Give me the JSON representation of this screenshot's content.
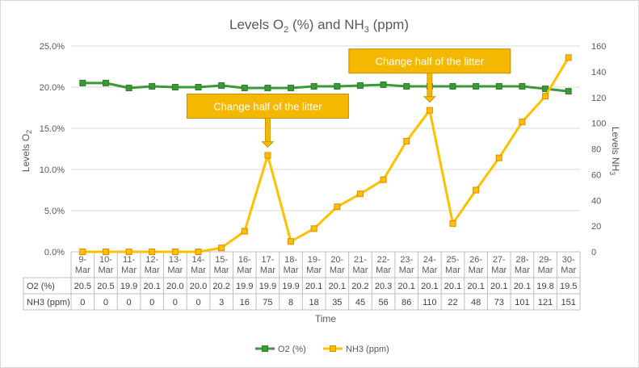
{
  "chart_data": {
    "type": "line",
    "title_parts": {
      "a": "Levels O",
      "a_sub": "2",
      "b": " (%) and NH",
      "b_sub": "3",
      "c": " (ppm)"
    },
    "xlabel": "Time",
    "ylabel_left": {
      "main": "Levels O",
      "sub": "2"
    },
    "ylabel_right": {
      "main": "Levels NH",
      "sub": "3"
    },
    "categories": [
      "9-Mar",
      "10-Mar",
      "11-Mar",
      "12-Mar",
      "13-Mar",
      "14-Mar",
      "15-Mar",
      "16-Mar",
      "17-Mar",
      "18-Mar",
      "19-Mar",
      "20-Mar",
      "21-Mar",
      "22-Mar",
      "23-Mar",
      "24-Mar",
      "25-Mar",
      "26-Mar",
      "27-Mar",
      "28-Mar",
      "29-Mar",
      "30-Mar"
    ],
    "series": [
      {
        "name": "O2 (%)",
        "axis": "left",
        "color": "#3a9a35",
        "values": [
          20.5,
          20.5,
          19.9,
          20.1,
          20.0,
          20.0,
          20.2,
          19.9,
          19.9,
          19.9,
          20.1,
          20.1,
          20.2,
          20.3,
          20.1,
          20.1,
          20.1,
          20.1,
          20.1,
          20.1,
          19.8,
          19.5
        ],
        "table_values": [
          "20.5",
          "20.5",
          "19.9",
          "20.1",
          "20.0",
          "20.0",
          "20.2",
          "19.9",
          "19.9",
          "19.9",
          "20.1",
          "20.1",
          "20.2",
          "20.3",
          "20.1",
          "20.1",
          "20.1",
          "20.1",
          "20.1",
          "20.1",
          "19.8",
          "19.5"
        ]
      },
      {
        "name": "NH3 (ppm)",
        "axis": "right",
        "color": "#ffc000",
        "values": [
          0,
          0,
          0,
          0,
          0,
          0,
          3,
          16,
          75,
          8,
          18,
          35,
          45,
          56,
          86,
          110,
          22,
          48,
          73,
          101,
          121,
          151
        ],
        "table_values": [
          "0",
          "0",
          "0",
          "0",
          "0",
          "0",
          "3",
          "16",
          "75",
          "8",
          "18",
          "35",
          "45",
          "56",
          "86",
          "110",
          "22",
          "48",
          "73",
          "101",
          "121",
          "151"
        ]
      }
    ],
    "y_left": {
      "min": 0,
      "max": 25,
      "step": 5,
      "tick_labels": [
        "0.0%",
        "5.0%",
        "10.0%",
        "15.0%",
        "20.0%",
        "25.0%"
      ]
    },
    "y_right": {
      "min": 0,
      "max": 160,
      "step": 20,
      "tick_labels": [
        "0",
        "20",
        "40",
        "60",
        "80",
        "100",
        "120",
        "140",
        "160"
      ]
    },
    "grid": true,
    "legend_position": "bottom",
    "annotations": [
      {
        "text": "Change half of the litter",
        "category_index": 8
      },
      {
        "text": "Change half of the litter",
        "category_index": 15
      }
    ],
    "callout_color": "#f5b800",
    "callout_border": "#c78f00"
  }
}
